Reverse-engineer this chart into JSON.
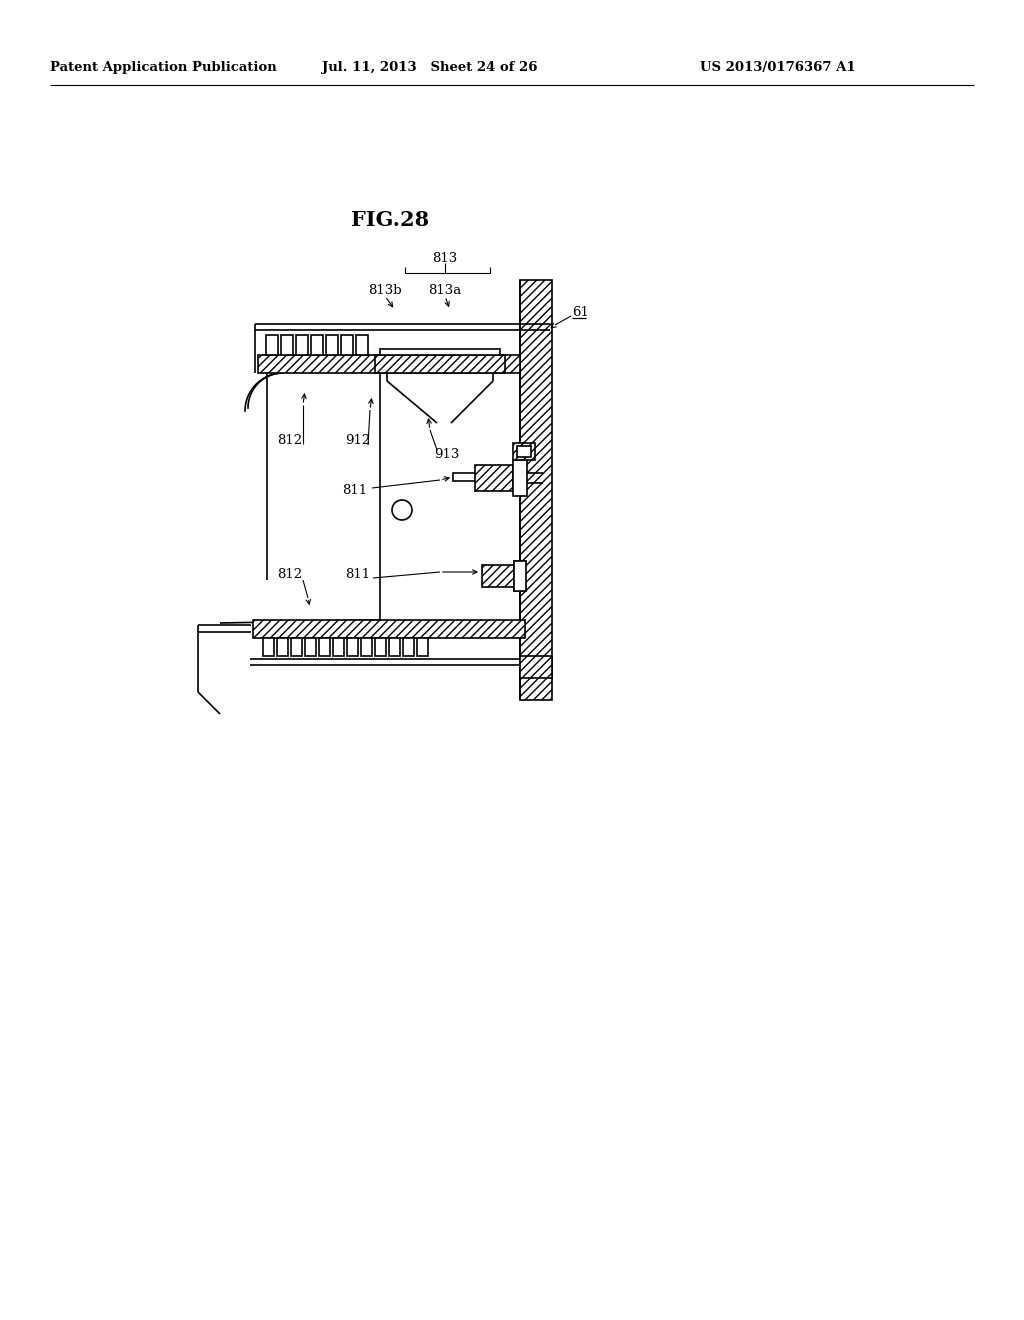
{
  "title": "FIG.28",
  "header_left": "Patent Application Publication",
  "header_center": "Jul. 11, 2013   Sheet 24 of 26",
  "header_right": "US 2013/0176367 A1",
  "bg_color": "#ffffff",
  "line_color": "#000000"
}
